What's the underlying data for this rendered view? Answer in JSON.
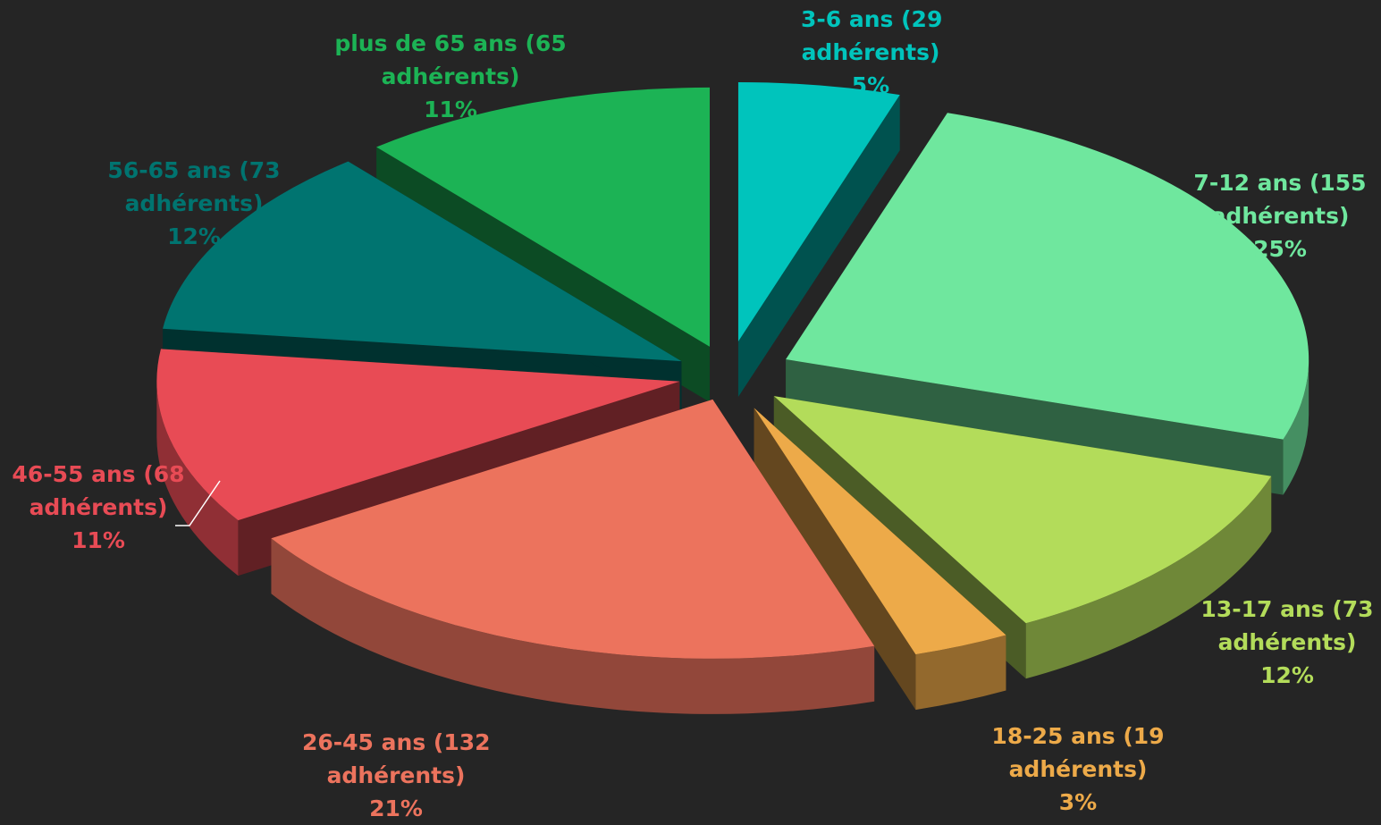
{
  "chart_data": {
    "type": "pie",
    "style": "3d-exploded",
    "slices": [
      {
        "category": "3-6 ans",
        "count": 29,
        "percent": 5,
        "line1": "3-6 ans (29",
        "line2": "adhérents)",
        "pct_label": "5%",
        "color": "#00C4BC"
      },
      {
        "category": "7-12 ans",
        "count": 155,
        "percent": 25,
        "line1": "7-12 ans (155",
        "line2": "adhérents)",
        "pct_label": "25%",
        "color": "#6FE79E"
      },
      {
        "category": "13-17 ans",
        "count": 73,
        "percent": 12,
        "line1": "13-17 ans (73",
        "line2": "adhérents)",
        "pct_label": "12%",
        "color": "#B3DC5A"
      },
      {
        "category": "18-25 ans",
        "count": 19,
        "percent": 3,
        "line1": "18-25 ans (19",
        "line2": "adhérents)",
        "pct_label": "3%",
        "color": "#EDAA49"
      },
      {
        "category": "26-45 ans",
        "count": 132,
        "percent": 21,
        "line1": "26-45 ans (132",
        "line2": "adhérents)",
        "pct_label": "21%",
        "color": "#EC735D"
      },
      {
        "category": "46-55 ans",
        "count": 68,
        "percent": 11,
        "line1": "46-55 ans (68",
        "line2": "adhérents)",
        "pct_label": "11%",
        "color": "#E84B55"
      },
      {
        "category": "56-65 ans",
        "count": 73,
        "percent": 12,
        "line1": "56-65 ans (73",
        "line2": "adhérents)",
        "pct_label": "12%",
        "color": "#007470"
      },
      {
        "category": "plus de 65 ans",
        "count": 65,
        "percent": 11,
        "line1": "plus de 65 ans (65",
        "line2": "adhérents)",
        "pct_label": "11%",
        "color": "#1CB355"
      }
    ],
    "legend": "none",
    "data_labels": "outside"
  }
}
